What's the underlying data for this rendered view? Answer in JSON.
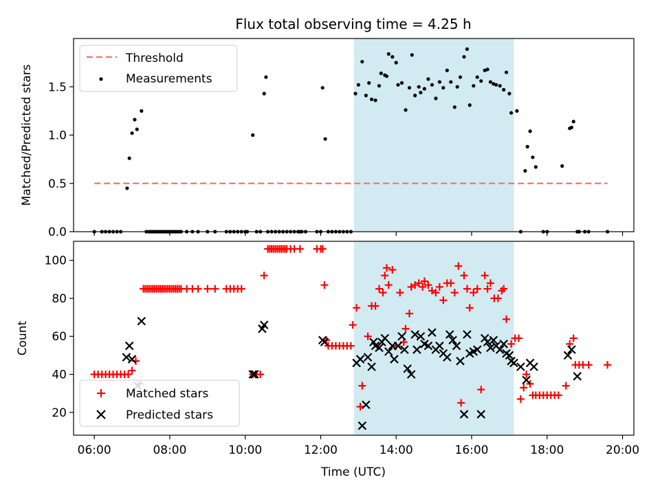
{
  "title": "Flux total observing time = 4.25 h",
  "chart_data": [
    {
      "type": "scatter",
      "ylabel": "Matched/Predicted stars",
      "xlabel": "",
      "xlim": [
        5.45,
        20.3
      ],
      "ylim": [
        0,
        2.0
      ],
      "yticks": [
        0.0,
        0.5,
        1.0,
        1.5
      ],
      "ytick_labels": [
        "0.0",
        "0.5",
        "1.0",
        "1.5"
      ],
      "grid": false,
      "legend": "top-left",
      "highlight_span": [
        12.88,
        17.12
      ],
      "threshold": {
        "name": "Threshold",
        "y": 0.5,
        "x_range": [
          6.0,
          19.6
        ],
        "color": "#ff7070"
      },
      "series": [
        {
          "name": "Measurements",
          "color": "#000000",
          "marker": "dot",
          "x": [
            6.0,
            6.2,
            6.3,
            6.4,
            6.5,
            6.6,
            6.7,
            6.87,
            6.93,
            7.0,
            7.07,
            7.13,
            7.25,
            7.38,
            7.45,
            7.5,
            7.55,
            7.6,
            7.65,
            7.7,
            7.75,
            7.8,
            7.85,
            7.9,
            7.95,
            8.0,
            8.05,
            8.1,
            8.15,
            8.2,
            8.25,
            8.3,
            8.45,
            8.6,
            8.75,
            9.0,
            9.2,
            9.5,
            9.6,
            9.7,
            9.8,
            9.9,
            10.0,
            10.05,
            10.2,
            10.3,
            10.4,
            10.5,
            10.55,
            10.6,
            10.7,
            10.8,
            10.9,
            11.0,
            11.1,
            11.2,
            11.3,
            11.4,
            11.45,
            11.5,
            11.6,
            11.9,
            12.0,
            12.05,
            12.12,
            12.2,
            12.3,
            12.4,
            12.5,
            12.6,
            12.7,
            12.8,
            12.92,
            13.0,
            13.1,
            13.2,
            13.28,
            13.35,
            13.45,
            13.55,
            13.6,
            13.7,
            13.75,
            13.8,
            13.9,
            14.0,
            14.05,
            14.15,
            14.25,
            14.35,
            14.42,
            14.5,
            14.6,
            14.65,
            14.75,
            14.85,
            14.95,
            15.05,
            15.15,
            15.25,
            15.35,
            15.45,
            15.55,
            15.62,
            15.7,
            15.8,
            15.88,
            15.95,
            16.05,
            16.15,
            16.25,
            16.35,
            16.42,
            16.5,
            16.58,
            16.65,
            16.75,
            16.85,
            16.92,
            17.0,
            17.05,
            17.2,
            17.3,
            17.42,
            17.48,
            17.55,
            17.62,
            17.7,
            17.9,
            18.0,
            18.4,
            18.6,
            18.65,
            18.7,
            18.8,
            18.85,
            19.0,
            19.1,
            19.6
          ],
          "y": [
            0,
            0,
            0,
            0,
            0,
            0,
            0,
            0.45,
            0.76,
            1.02,
            1.16,
            1.06,
            1.25,
            0,
            0,
            0,
            0,
            0,
            0,
            0,
            0,
            0,
            0,
            0,
            0,
            0,
            0,
            0,
            0,
            0,
            0,
            0,
            0,
            0,
            0,
            0,
            0,
            0,
            0,
            0,
            0,
            0,
            0,
            0,
            1.0,
            0,
            0,
            1.43,
            1.6,
            0,
            0,
            0,
            0,
            0,
            0,
            0,
            0,
            0,
            0,
            0,
            0,
            0,
            0,
            1.49,
            0.96,
            0,
            0,
            0,
            0,
            0,
            0,
            0,
            1.43,
            1.52,
            1.76,
            1.41,
            1.54,
            1.37,
            1.36,
            1.51,
            1.64,
            1.62,
            1.61,
            1.84,
            1.81,
            1.75,
            1.52,
            1.54,
            1.26,
            1.49,
            1.83,
            1.41,
            1.5,
            1.44,
            1.48,
            1.58,
            1.52,
            1.38,
            1.55,
            1.49,
            1.67,
            1.55,
            1.29,
            1.5,
            1.6,
            1.81,
            1.89,
            1.31,
            1.51,
            1.6,
            1.56,
            1.67,
            1.68,
            1.55,
            1.53,
            1.52,
            1.51,
            1.47,
            1.65,
            1.43,
            1.23,
            1.25,
            0,
            0.63,
            0.88,
            1.04,
            0.77,
            0.67,
            0,
            0,
            0.68,
            1.07,
            1.08,
            1.14,
            0,
            0,
            0,
            0,
            0
          ]
        }
      ]
    },
    {
      "type": "scatter",
      "ylabel": "Count",
      "xlabel": "Time (UTC)",
      "xlim": [
        5.45,
        20.3
      ],
      "ylim": [
        8,
        110
      ],
      "yticks": [
        20,
        40,
        60,
        80,
        100
      ],
      "ytick_labels": [
        "20",
        "40",
        "60",
        "80",
        "100"
      ],
      "xticks": [
        6,
        8,
        10,
        12,
        14,
        16,
        18,
        20
      ],
      "xtick_labels": [
        "06:00",
        "08:00",
        "10:00",
        "12:00",
        "14:00",
        "16:00",
        "18:00",
        "20:00"
      ],
      "grid": false,
      "legend": "bottom-left",
      "highlight_span": [
        12.88,
        17.12
      ],
      "series": [
        {
          "name": "Matched stars",
          "color": "#ff0000",
          "marker": "plus",
          "x": [
            6.0,
            6.1,
            6.2,
            6.3,
            6.4,
            6.5,
            6.6,
            6.7,
            6.8,
            6.9,
            7.0,
            7.1,
            7.2,
            7.3,
            7.35,
            7.4,
            7.45,
            7.5,
            7.55,
            7.6,
            7.65,
            7.7,
            7.75,
            7.8,
            7.85,
            7.9,
            7.95,
            8.0,
            8.05,
            8.1,
            8.15,
            8.2,
            8.25,
            8.3,
            8.45,
            8.6,
            8.75,
            9.0,
            9.2,
            9.5,
            9.6,
            9.7,
            9.8,
            9.9,
            10.2,
            10.3,
            10.4,
            10.5,
            10.6,
            10.65,
            10.7,
            10.75,
            10.8,
            10.85,
            10.9,
            10.95,
            11.0,
            11.05,
            11.1,
            11.2,
            11.3,
            11.45,
            11.9,
            12.0,
            12.05,
            12.1,
            12.15,
            12.2,
            12.3,
            12.4,
            12.5,
            12.6,
            12.7,
            12.8,
            12.85,
            12.95,
            13.05,
            13.1,
            13.25,
            13.35,
            13.45,
            13.55,
            13.65,
            13.7,
            13.75,
            13.8,
            13.9,
            14.0,
            14.1,
            14.2,
            14.25,
            14.35,
            14.4,
            14.5,
            14.6,
            14.7,
            14.75,
            14.85,
            14.95,
            15.05,
            15.15,
            15.25,
            15.35,
            15.45,
            15.55,
            15.65,
            15.72,
            15.8,
            15.88,
            15.95,
            16.05,
            16.15,
            16.25,
            16.35,
            16.42,
            16.5,
            16.6,
            16.7,
            16.8,
            16.85,
            16.92,
            17.05,
            17.15,
            17.25,
            17.3,
            17.38,
            17.45,
            17.55,
            17.62,
            17.7,
            17.8,
            17.9,
            18.0,
            18.1,
            18.2,
            18.3,
            18.5,
            18.6,
            18.7,
            18.75,
            18.85,
            18.95,
            19.1,
            19.6
          ],
          "y": [
            40,
            40,
            40,
            40,
            40,
            40,
            40,
            40,
            40,
            40,
            42,
            47,
            35,
            85,
            85,
            85,
            85,
            85,
            85,
            85,
            85,
            85,
            85,
            85,
            85,
            85,
            85,
            85,
            85,
            85,
            85,
            85,
            85,
            85,
            85,
            85,
            85,
            85,
            85,
            85,
            85,
            85,
            85,
            85,
            40,
            40,
            40,
            92,
            106,
            106,
            106,
            106,
            106,
            106,
            106,
            106,
            106,
            106,
            106,
            106,
            106,
            106,
            106,
            106,
            106,
            87,
            58,
            55,
            55,
            55,
            55,
            55,
            55,
            55,
            66,
            75,
            23,
            34,
            60,
            76,
            76,
            85,
            83,
            92,
            96,
            87,
            95,
            55,
            83,
            57,
            64,
            72,
            86,
            87,
            88,
            86,
            89,
            87,
            84,
            83,
            86,
            79,
            88,
            88,
            83,
            97,
            25,
            92,
            85,
            75,
            83,
            85,
            32,
            92,
            85,
            88,
            80,
            80,
            84,
            85,
            69,
            56,
            59,
            59,
            27,
            33,
            40,
            35,
            29,
            29,
            29,
            29,
            29,
            29,
            29,
            29,
            34,
            56,
            59,
            45,
            45,
            45,
            45,
            45
          ]
        },
        {
          "name": "Predicted stars",
          "color": "#000000",
          "marker": "x",
          "x": [
            6.85,
            6.93,
            7.0,
            7.15,
            7.25,
            10.2,
            10.25,
            10.45,
            10.5,
            12.05,
            12.1,
            12.95,
            13.05,
            13.1,
            13.2,
            13.25,
            13.35,
            13.4,
            13.45,
            13.55,
            13.62,
            13.7,
            13.8,
            13.9,
            13.95,
            14.05,
            14.15,
            14.22,
            14.3,
            14.4,
            14.5,
            14.55,
            14.65,
            14.75,
            14.85,
            14.95,
            15.05,
            15.15,
            15.25,
            15.35,
            15.42,
            15.5,
            15.6,
            15.7,
            15.8,
            15.88,
            15.95,
            16.05,
            16.15,
            16.25,
            16.35,
            16.42,
            16.5,
            16.58,
            16.65,
            16.75,
            16.85,
            16.92,
            17.0,
            17.05,
            17.12,
            17.3,
            17.45,
            17.55,
            17.65,
            18.55,
            18.65,
            18.8
          ],
          "y": [
            49,
            55,
            48,
            34,
            68,
            40,
            40,
            64,
            66,
            58,
            57,
            46,
            48,
            13,
            24,
            49,
            44,
            57,
            55,
            54,
            57,
            59,
            52,
            55,
            48,
            55,
            60,
            53,
            43,
            40,
            61,
            53,
            60,
            56,
            55,
            62,
            53,
            55,
            51,
            49,
            61,
            58,
            55,
            47,
            19,
            61,
            51,
            52,
            53,
            19,
            59,
            57,
            54,
            58,
            55,
            53,
            56,
            51,
            50,
            47,
            46,
            44,
            37,
            46,
            44,
            50,
            53,
            39
          ]
        }
      ]
    }
  ]
}
